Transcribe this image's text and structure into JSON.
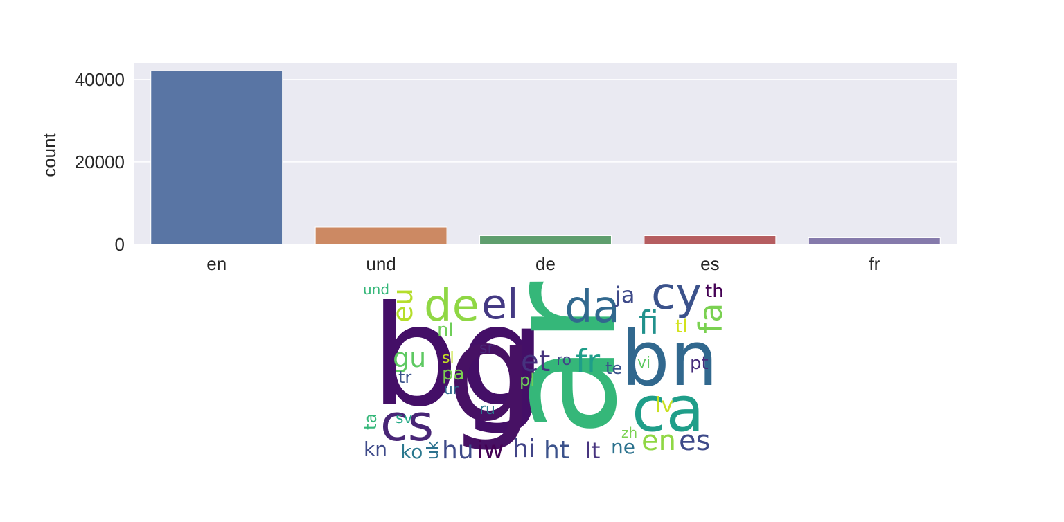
{
  "chart_data": [
    {
      "type": "bar",
      "categories": [
        "en",
        "und",
        "de",
        "es",
        "fr"
      ],
      "values": [
        42100,
        4200,
        2100,
        2100,
        1600
      ],
      "xlabel": "",
      "ylabel": "count",
      "ylim": [
        0,
        44000
      ],
      "yticks": [
        0,
        20000,
        40000
      ],
      "ytick_labels": [
        "0",
        "20000",
        "40000"
      ],
      "colors": [
        "#5975a4",
        "#cc8963",
        "#5f9e6e",
        "#b55d60",
        "#857aab"
      ],
      "grid": true,
      "background": "#eaeaf2"
    },
    {
      "type": "wordcloud",
      "words": [
        {
          "text": "bg",
          "color": "#440f67"
        },
        {
          "text": "g",
          "color": "#471164"
        },
        {
          "text": "ar",
          "color": "#35b779"
        },
        {
          "text": "bn",
          "color": "#31688e"
        },
        {
          "text": "ca",
          "color": "#1f9e89"
        },
        {
          "text": "cs",
          "color": "#482576"
        },
        {
          "text": "da",
          "color": "#31688e"
        },
        {
          "text": "cy",
          "color": "#3b528b"
        },
        {
          "text": "de",
          "color": "#8fd744"
        },
        {
          "text": "el",
          "color": "#443983"
        },
        {
          "text": "fa",
          "color": "#7ad151"
        },
        {
          "text": "fi",
          "color": "#21918c"
        },
        {
          "text": "fr",
          "color": "#1f9e89"
        },
        {
          "text": "et",
          "color": "#46337e"
        },
        {
          "text": "eu",
          "color": "#b5de2b"
        },
        {
          "text": "es",
          "color": "#3e4a89"
        },
        {
          "text": "en",
          "color": "#8fd744"
        },
        {
          "text": "hu",
          "color": "#3e4a89"
        },
        {
          "text": "iw",
          "color": "#440154"
        },
        {
          "text": "hi",
          "color": "#414487"
        },
        {
          "text": "ht",
          "color": "#3b528b"
        },
        {
          "text": "lt",
          "color": "#46337e"
        },
        {
          "text": "ne",
          "color": "#2c728e"
        },
        {
          "text": "kn",
          "color": "#3e4a89"
        },
        {
          "text": "ko",
          "color": "#2a788e"
        },
        {
          "text": "uk",
          "color": "#2c728e"
        },
        {
          "text": "ta",
          "color": "#35b779"
        },
        {
          "text": "sv",
          "color": "#22a884"
        },
        {
          "text": "gu",
          "color": "#5ec962"
        },
        {
          "text": "tr",
          "color": "#3b528b"
        },
        {
          "text": "sl",
          "color": "#c2df23"
        },
        {
          "text": "pa",
          "color": "#7ad151"
        },
        {
          "text": "ur",
          "color": "#31688e"
        },
        {
          "text": "sr",
          "color": "#482878"
        },
        {
          "text": "ru",
          "color": "#2a788e"
        },
        {
          "text": "nl",
          "color": "#6ece58"
        },
        {
          "text": "ja",
          "color": "#3e4a89"
        },
        {
          "text": "th",
          "color": "#440154"
        },
        {
          "text": "und",
          "color": "#35b779"
        },
        {
          "text": "tl",
          "color": "#d2e21b"
        },
        {
          "text": "pt",
          "color": "#472d7b"
        },
        {
          "text": "vi",
          "color": "#5ec962"
        },
        {
          "text": "te",
          "color": "#3b528b"
        },
        {
          "text": "ro",
          "color": "#414487"
        },
        {
          "text": "pl",
          "color": "#6ece58"
        },
        {
          "text": "lv",
          "color": "#c8e020"
        },
        {
          "text": "zh",
          "color": "#7ad151"
        }
      ]
    }
  ]
}
